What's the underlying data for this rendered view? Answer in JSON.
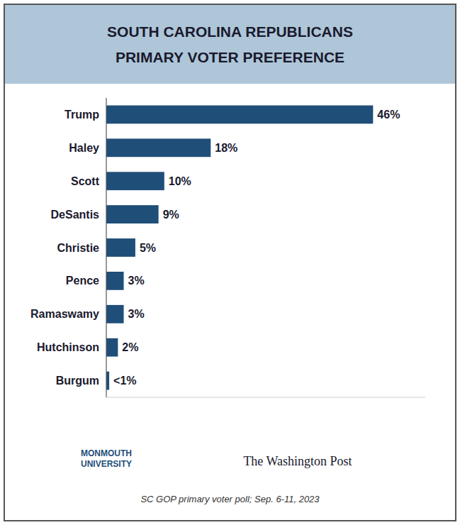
{
  "chart_data": {
    "type": "bar",
    "orientation": "horizontal",
    "title": "SOUTH CAROLINA REPUBLICANS",
    "subtitle": "PRIMARY VOTER PREFERENCE",
    "categories": [
      "Trump",
      "Haley",
      "Scott",
      "DeSantis",
      "Christie",
      "Pence",
      "Ramaswamy",
      "Hutchinson",
      "Burgum"
    ],
    "values": [
      46,
      18,
      10,
      9,
      5,
      3,
      3,
      2,
      0.5
    ],
    "value_labels": [
      "46%",
      "18%",
      "10%",
      "9%",
      "5%",
      "3%",
      "3%",
      "2%",
      "<1%"
    ],
    "color": "#1f4e79",
    "xlim": [
      0,
      55
    ],
    "data_labels": true,
    "tick_labels": "y",
    "grid": false,
    "annotations": [
      "SC GOP primary voter poll;  Sep. 6-11, 2023",
      "MONMOUTH\nUNIVERSITY",
      "The Washington Post"
    ]
  }
}
